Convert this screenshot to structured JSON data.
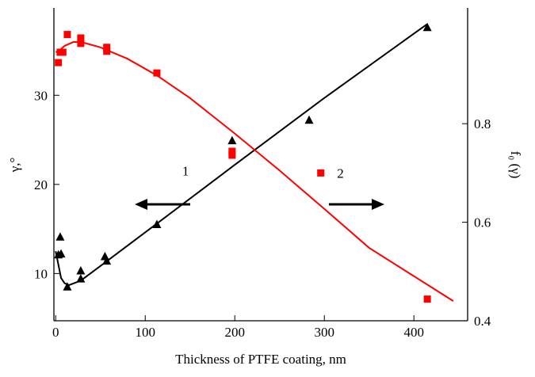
{
  "chart_data": {
    "type": "scatter",
    "xlabel": "Thickness of PTFE coating, nm",
    "ylabel": "γ,°",
    "y2label": "f₀ (γ)",
    "xlim": [
      -2,
      460
    ],
    "xticks": [
      0,
      100,
      200,
      300,
      400
    ],
    "ylim": [
      4.7,
      39.8
    ],
    "yticks": [
      10,
      20,
      30
    ],
    "y2lim": [
      0.4,
      1.035
    ],
    "y2ticks": [
      0.4,
      0.6,
      0.8
    ],
    "annotations": [
      {
        "text": "1",
        "x": 145,
        "y": 21
      },
      {
        "text": "2",
        "x": 318,
        "y": 0.7
      }
    ],
    "series": [
      {
        "color": "#000000",
        "marker": "triangle",
        "axis": "y",
        "x": [
          3,
          5,
          6,
          13,
          28,
          28,
          55,
          57,
          113,
          197,
          283,
          415
        ],
        "values": [
          12.1,
          14.1,
          12.2,
          8.5,
          9.4,
          10.3,
          11.9,
          11.4,
          15.5,
          24.9,
          27.2,
          37.6
        ]
      },
      {
        "color": "#ff0000",
        "marker": "square",
        "axis": "y2",
        "x": [
          3,
          5,
          8,
          13,
          28,
          28,
          57,
          57,
          113,
          197,
          197,
          296,
          415
        ],
        "values": [
          0.924,
          0.945,
          0.945,
          0.981,
          0.974,
          0.963,
          0.955,
          0.947,
          0.903,
          0.744,
          0.736,
          0.7,
          0.444
        ]
      }
    ],
    "fit_lines": [
      {
        "color": "#000000",
        "axis": "y",
        "x": [
          0,
          3,
          6,
          10,
          15,
          28,
          60,
          113,
          200,
          300,
          415
        ],
        "values": [
          12.5,
          11,
          9.5,
          8.9,
          8.7,
          9.2,
          11.6,
          15.6,
          22.2,
          29.7,
          38.0
        ]
      },
      {
        "color": "#ff0000",
        "axis": "y2",
        "x": [
          0,
          5,
          10,
          20,
          30,
          50,
          80,
          113,
          150,
          200,
          250,
          300,
          350,
          444
        ],
        "values": [
          0.945,
          0.95,
          0.958,
          0.966,
          0.965,
          0.955,
          0.932,
          0.898,
          0.852,
          0.78,
          0.705,
          0.627,
          0.548,
          0.44
        ]
      }
    ]
  }
}
